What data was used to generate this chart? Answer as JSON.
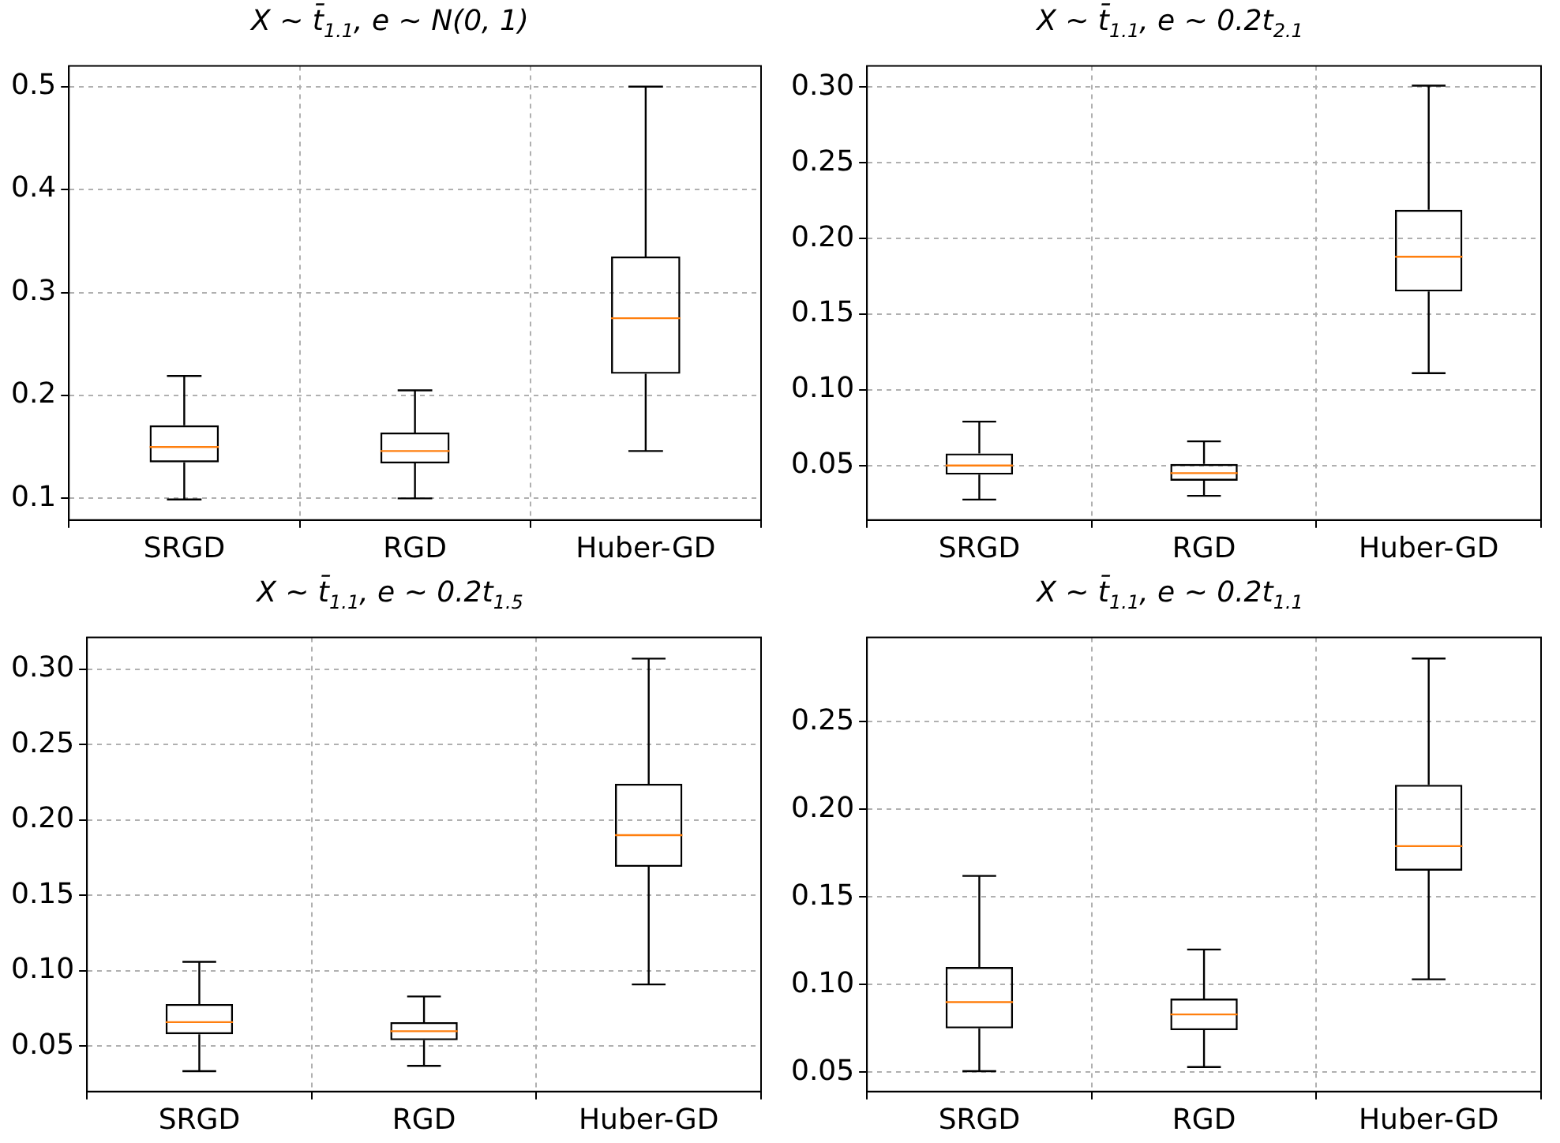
{
  "chart_data": [
    {
      "type": "box",
      "title": "X ∼ t̄$_{1.1}$, e ∼ N(0, 1)",
      "categories": [
        "SRGD",
        "RGD",
        "Huber-GD"
      ],
      "boxes": [
        {
          "low": 0.099,
          "q1": 0.135,
          "median": 0.15,
          "q3": 0.171,
          "high": 0.219
        },
        {
          "low": 0.1,
          "q1": 0.134,
          "median": 0.146,
          "q3": 0.164,
          "high": 0.205
        },
        {
          "low": 0.146,
          "q1": 0.221,
          "median": 0.275,
          "q3": 0.335,
          "high": 0.5
        }
      ],
      "ylim": [
        0.079,
        0.52
      ],
      "yticks": [
        0.1,
        0.2,
        0.3,
        0.4,
        0.5
      ],
      "grid": true
    },
    {
      "type": "box",
      "title": "X ∼ t̄$_{1.1}$, e ∼ 0.2t$_{2.1}$",
      "categories": [
        "SRGD",
        "RGD",
        "Huber-GD"
      ],
      "boxes": [
        {
          "low": 0.0275,
          "q1": 0.044,
          "median": 0.05,
          "q3": 0.058,
          "high": 0.079
        },
        {
          "low": 0.03,
          "q1": 0.04,
          "median": 0.045,
          "q3": 0.051,
          "high": 0.066
        },
        {
          "low": 0.111,
          "q1": 0.165,
          "median": 0.188,
          "q3": 0.219,
          "high": 0.301
        }
      ],
      "ylim": [
        0.014,
        0.314
      ],
      "yticks": [
        0.05,
        {
          "value": 0.1,
          "label": "0.10"
        },
        0.15,
        {
          "value": 0.2,
          "label": "0.20"
        },
        0.25,
        {
          "value": 0.3,
          "label": "0.30"
        }
      ],
      "grid": true
    },
    {
      "type": "box",
      "title": "X ∼ t̄$_{1.1}$, e ∼ 0.2t$_{1.5}$",
      "categories": [
        "SRGD",
        "RGD",
        "Huber-GD"
      ],
      "boxes": [
        {
          "low": 0.0335,
          "q1": 0.058,
          "median": 0.066,
          "q3": 0.078,
          "high": 0.106
        },
        {
          "low": 0.037,
          "q1": 0.054,
          "median": 0.06,
          "q3": 0.066,
          "high": 0.083
        },
        {
          "low": 0.091,
          "q1": 0.169,
          "median": 0.19,
          "q3": 0.224,
          "high": 0.307
        }
      ],
      "ylim": [
        0.02,
        0.321
      ],
      "yticks": [
        0.05,
        {
          "value": 0.1,
          "label": "0.10"
        },
        0.15,
        {
          "value": 0.2,
          "label": "0.20"
        },
        0.25,
        {
          "value": 0.3,
          "label": "0.30"
        }
      ],
      "grid": true
    },
    {
      "type": "box",
      "title": "X ∼ t̄$_{1.1}$, e ∼ 0.2t$_{1.1}$",
      "categories": [
        "SRGD",
        "RGD",
        "Huber-GD"
      ],
      "boxes": [
        {
          "low": 0.0506,
          "q1": 0.075,
          "median": 0.09,
          "q3": 0.11,
          "high": 0.162
        },
        {
          "low": 0.053,
          "q1": 0.074,
          "median": 0.083,
          "q3": 0.092,
          "high": 0.12
        },
        {
          "low": 0.103,
          "q1": 0.165,
          "median": 0.179,
          "q3": 0.214,
          "high": 0.286
        }
      ],
      "ylim": [
        0.039,
        0.298
      ],
      "yticks": [
        0.05,
        {
          "value": 0.1,
          "label": "0.10"
        },
        0.15,
        {
          "value": 0.2,
          "label": "0.20"
        },
        0.25
      ],
      "grid": true
    }
  ]
}
